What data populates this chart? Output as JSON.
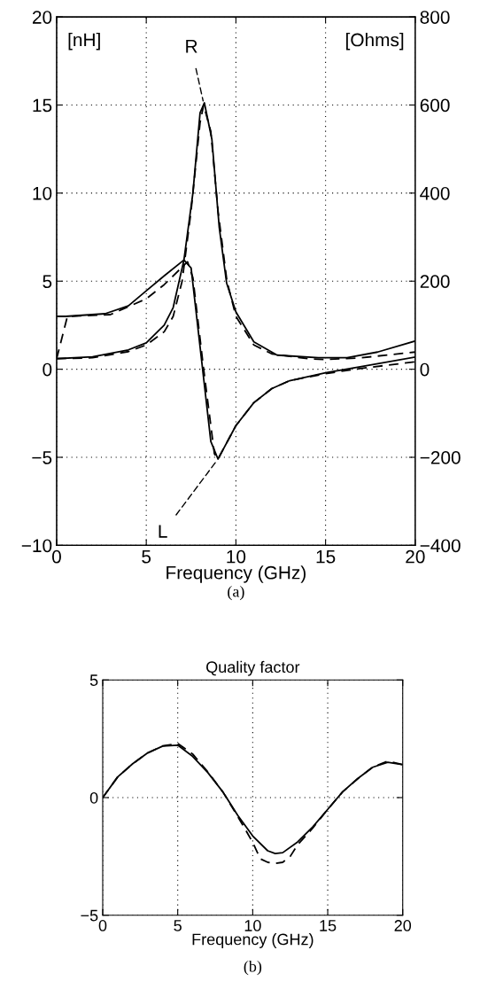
{
  "chart_data": [
    {
      "type": "line",
      "xlabel": "Frequency (GHz)",
      "grid": true,
      "legend": false,
      "marker": "none",
      "xlim": [
        0,
        20
      ],
      "xticks": [
        0,
        5,
        10,
        15,
        20
      ],
      "ylim": [
        -10,
        20
      ],
      "yticks": [
        -10,
        -5,
        0,
        5,
        10,
        15,
        20
      ],
      "y2lim": [
        -400,
        800
      ],
      "y2ticks": [
        -400,
        -200,
        0,
        200,
        400,
        600,
        800
      ],
      "annotations": [
        "[nH]",
        "[Ohms]",
        {
          "text": "R",
          "x": 8.2,
          "y": 15.1
        },
        {
          "text": "L",
          "x": 9.0,
          "y": -5.1
        },
        "(a)"
      ],
      "series": [
        {
          "color": "#000000",
          "line_style": "solid",
          "x": [
            0,
            0.5,
            2.7,
            4,
            5,
            6,
            7.1,
            7.5,
            8.6,
            9.0,
            10,
            11,
            12,
            13,
            15,
            17,
            20
          ],
          "values": [
            3.0,
            3.0,
            3.15,
            3.6,
            4.45,
            5.3,
            6.2,
            5.75,
            -4.1,
            -5.1,
            -3.2,
            -1.9,
            -1.1,
            -0.65,
            -0.2,
            0.15,
            0.69
          ]
        },
        {
          "color": "#000000",
          "line_style": "dashed",
          "x": [
            0,
            0.6,
            3,
            5,
            6,
            7,
            7.3,
            7.6,
            8.2,
            8.8,
            9.0,
            10,
            11,
            12,
            13,
            15,
            17,
            20
          ],
          "values": [
            0.6,
            3.0,
            3.1,
            4.0,
            4.8,
            5.8,
            6.1,
            5.2,
            0,
            -4.8,
            -5.1,
            -3.2,
            -1.9,
            -1.1,
            -0.65,
            -0.25,
            0.05,
            0.42
          ]
        },
        {
          "color": "#000000",
          "line_style": "solid",
          "axis": "y2",
          "x": [
            0,
            2,
            4,
            5,
            6,
            6.5,
            7.1,
            7.6,
            8.0,
            8.24,
            8.66,
            9.07,
            9.48,
            10,
            11,
            12.3,
            14.6,
            16.2,
            17.9,
            20
          ],
          "values": [
            24,
            28,
            44,
            60,
            100,
            140,
            248,
            400,
            582,
            605,
            522,
            322,
            196,
            130,
            62,
            32,
            26,
            26,
            39,
            64
          ]
        },
        {
          "color": "#000000",
          "line_style": "dashed",
          "axis": "y2",
          "x": [
            0,
            2,
            4,
            5,
            6,
            6.5,
            7,
            7.5,
            8.0,
            8.2,
            8.6,
            9.0,
            9.5,
            10,
            11,
            12,
            14,
            15,
            17,
            20
          ],
          "values": [
            24,
            26,
            40,
            55,
            85,
            120,
            200,
            360,
            560,
            600,
            540,
            360,
            200,
            120,
            55,
            35,
            24,
            22,
            26,
            39
          ]
        }
      ]
    },
    {
      "type": "line",
      "title": "Quality factor",
      "xlabel": "Frequency (GHz)",
      "grid": true,
      "legend": false,
      "marker": "none",
      "xlim": [
        0,
        20
      ],
      "xticks": [
        0,
        5,
        10,
        15,
        20
      ],
      "ylim": [
        -5,
        5
      ],
      "yticks": [
        -5,
        0,
        5
      ],
      "annotations": [
        "(b)"
      ],
      "series": [
        {
          "color": "#000000",
          "line_style": "solid",
          "x": [
            0,
            1,
            2,
            3,
            4,
            5,
            6,
            7,
            8,
            9,
            10,
            11,
            11.5,
            12,
            13,
            14,
            15,
            16,
            17,
            18,
            19,
            20
          ],
          "values": [
            0,
            0.88,
            1.44,
            1.9,
            2.19,
            2.23,
            1.75,
            1.07,
            0.25,
            -0.75,
            -1.63,
            -2.26,
            -2.38,
            -2.34,
            -1.88,
            -1.25,
            -0.5,
            0.25,
            0.81,
            1.29,
            1.5,
            1.4
          ]
        },
        {
          "color": "#000000",
          "line_style": "dashed",
          "x": [
            0,
            1,
            2,
            3,
            4,
            5,
            6,
            7,
            8,
            9,
            10,
            10.5,
            11,
            11.5,
            12,
            12.5,
            13,
            14,
            15,
            16,
            17,
            18,
            19,
            20
          ],
          "values": [
            0,
            0.88,
            1.44,
            1.9,
            2.2,
            2.3,
            1.85,
            1.1,
            0.25,
            -0.8,
            -1.9,
            -2.6,
            -2.75,
            -2.8,
            -2.75,
            -2.5,
            -2.0,
            -1.3,
            -0.5,
            0.25,
            0.8,
            1.3,
            1.55,
            1.4
          ]
        }
      ]
    }
  ]
}
